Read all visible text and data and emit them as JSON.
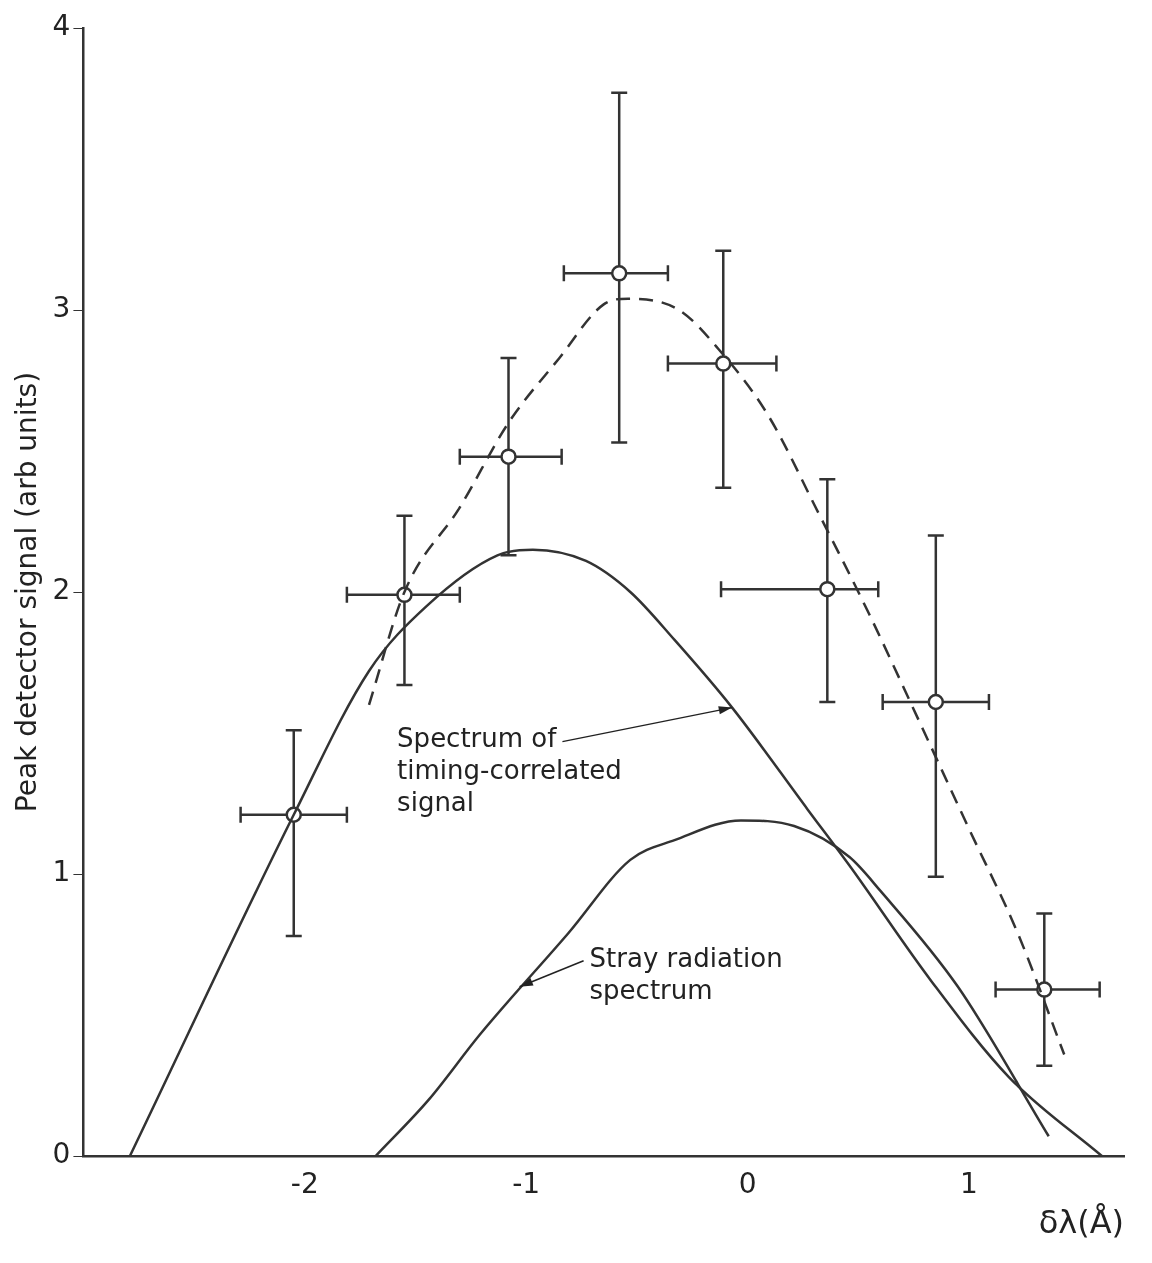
{
  "chart_data": {
    "type": "scatter",
    "xlabel": "δλ(Å)",
    "ylabel": "Peak detector signal (arb units)",
    "xlim": [
      -3,
      1.7
    ],
    "xticks": [
      -2,
      -1,
      0,
      1
    ],
    "ylim": [
      0,
      4
    ],
    "yticks": [
      0,
      1,
      2,
      3,
      4
    ],
    "grid": false,
    "legend": false,
    "series": [
      {
        "type": "line",
        "color": "#333333",
        "line_style": "dashed",
        "marker": "none",
        "x": [
          -1.71,
          -1.55,
          -1.3,
          -1.08,
          -0.85,
          -0.65,
          -0.54,
          -0.31,
          -0.13,
          0.09,
          0.32,
          0.55,
          0.77,
          1.0,
          1.22,
          1.43
        ],
        "values": [
          1.6,
          2.0,
          2.3,
          2.6,
          2.83,
          3.02,
          3.04,
          3.0,
          2.86,
          2.63,
          2.28,
          1.92,
          1.55,
          1.16,
          0.79,
          0.36
        ]
      },
      {
        "type": "line",
        "color": "#333333",
        "line_style": "solid",
        "marker": "none",
        "x": [
          -2.79,
          -2.05,
          -1.71,
          -1.45,
          -1.13,
          -0.97,
          -0.73,
          -0.53,
          -0.33,
          -0.07,
          0.27,
          0.46,
          0.83,
          1.18,
          1.6
        ],
        "values": [
          0,
          1.21,
          1.72,
          1.95,
          2.13,
          2.15,
          2.11,
          2.0,
          1.83,
          1.59,
          1.23,
          1.03,
          0.62,
          0.28,
          0
        ]
      },
      {
        "type": "line",
        "color": "#333333",
        "line_style": "solid",
        "marker": "none",
        "x": [
          -1.68,
          -1.44,
          -1.21,
          -0.81,
          -0.53,
          -0.33,
          -0.03,
          0.21,
          0.46,
          0.6,
          0.95,
          1.36
        ],
        "values": [
          0,
          0.2,
          0.43,
          0.79,
          1.05,
          1.12,
          1.19,
          1.17,
          1.06,
          0.94,
          0.6,
          0.07
        ]
      },
      {
        "color": "#333333",
        "marker": "circle",
        "x": [
          -2.05,
          -1.55,
          -1.08,
          -0.58,
          -0.11,
          0.36,
          0.85,
          1.34
        ],
        "values": [
          1.21,
          1.99,
          2.48,
          3.13,
          2.81,
          2.01,
          1.61,
          0.59
        ],
        "errors": [
          [
            0.78,
            1.51
          ],
          [
            1.67,
            2.27
          ],
          [
            2.13,
            2.83
          ],
          [
            2.53,
            3.77
          ],
          [
            2.37,
            3.21
          ],
          [
            1.61,
            2.4
          ],
          [
            0.99,
            2.2
          ],
          [
            0.32,
            0.86
          ]
        ],
        "xerrors": [
          [
            -2.29,
            -1.81
          ],
          [
            -1.81,
            -1.3
          ],
          [
            -1.3,
            -0.84
          ],
          [
            -0.83,
            -0.36
          ],
          [
            -0.36,
            0.13
          ],
          [
            -0.12,
            0.59
          ],
          [
            0.61,
            1.09
          ],
          [
            1.12,
            1.59
          ]
        ]
      }
    ],
    "annotations": [
      {
        "text": "Spectrum of timing-correlated signal",
        "x": -0.07,
        "y": 1.59
      },
      {
        "text": "Stray radiation spectrum",
        "x": -1.03,
        "y": 0.6
      }
    ]
  }
}
